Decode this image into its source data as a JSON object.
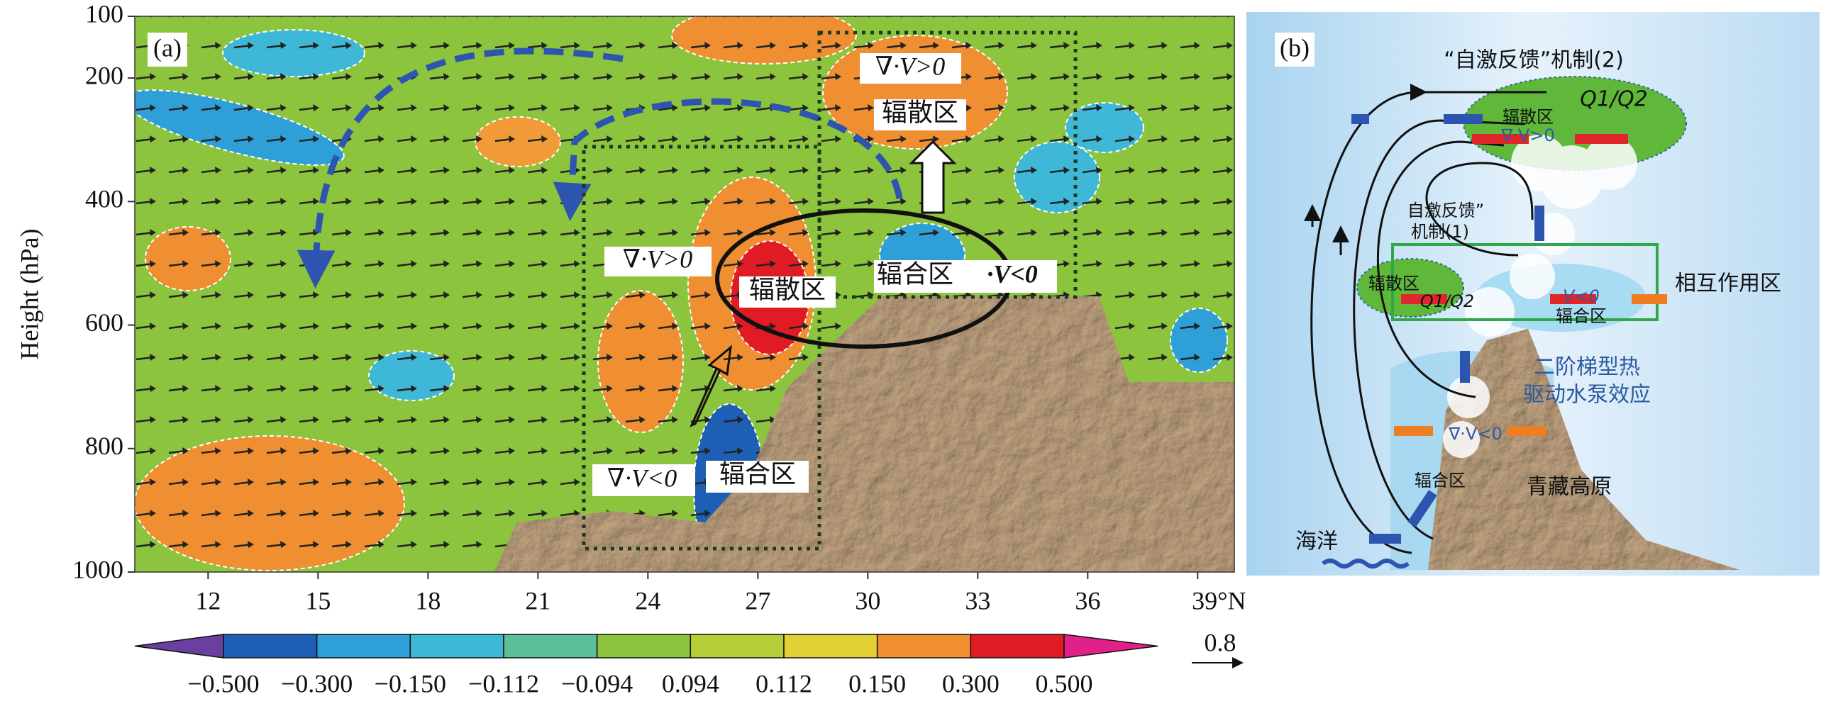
{
  "chart_data": {
    "type": "contour",
    "panel_label": "(a)",
    "y_label": "Height (hPa)",
    "ylim": [
      100,
      1000
    ],
    "yticks": [
      100,
      200,
      400,
      600,
      800,
      1000
    ],
    "y_inverted": true,
    "xlim": [
      10,
      40
    ],
    "xticks": [
      12,
      15,
      18,
      21,
      24,
      27,
      30,
      33,
      36,
      {
        "value": 39,
        "label": "39°N"
      }
    ],
    "colorbar": {
      "labels": [
        "−0.500",
        "−0.300",
        "−0.150",
        "−0.112",
        "−0.094",
        "0.094",
        "0.112",
        "0.150",
        "0.300",
        "0.500"
      ],
      "colors": [
        "#6b3fa0",
        "#1d5fb5",
        "#2f9fd8",
        "#3fb8d8",
        "#5bbf9a",
        "#8cc43e",
        "#b5cf3a",
        "#e2d035",
        "#ef8f32",
        "#e01b24",
        "#e0218a"
      ]
    },
    "vector_scale_label": "0.8",
    "annotations": [
      "∇·V>0",
      "辐散区",
      "∇·V>0",
      "辐散区",
      "辐合区",
      "·V<0",
      "∇·V<0",
      "辐合区"
    ]
  },
  "diagram": {
    "panel_label": "(b)",
    "texts": [
      "“自激反馈”机制(2)",
      "Q1/Q2",
      "辐散区",
      "∇·V>0",
      "自激反馈”",
      "机制(1)",
      "辐散区",
      "Q1/Q2",
      "V<0",
      "辐合区",
      "相互作用区",
      "二阶梯型热",
      "驱动水泵效应",
      "∇·V<0",
      "辐合区",
      "青藏高原",
      "海洋"
    ]
  }
}
